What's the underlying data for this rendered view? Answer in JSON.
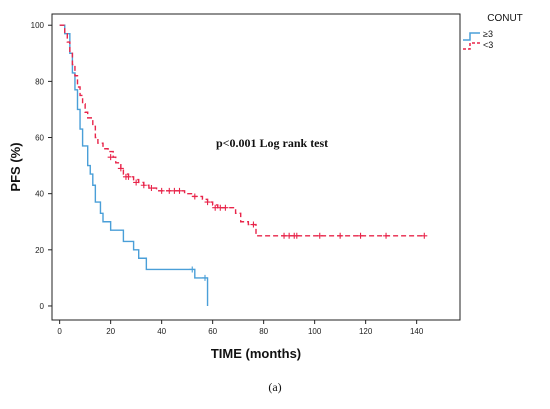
{
  "chart_data": {
    "type": "line",
    "title": "",
    "xlabel": "TIME (months)",
    "ylabel": "PFS (%)",
    "xlim": [
      -3,
      157
    ],
    "ylim": [
      -5,
      104
    ],
    "x_ticks": [
      0,
      20,
      40,
      60,
      80,
      100,
      120,
      140
    ],
    "y_ticks": [
      0,
      20,
      40,
      60,
      80,
      100
    ],
    "grid": false,
    "legend": {
      "title": "CONUT",
      "placement": "top-right",
      "entries": [
        "≥3",
        "<3"
      ]
    },
    "annotation": "p<0.001 Log rank test",
    "caption": "(a)",
    "series": [
      {
        "name": "≥3",
        "color": "#4a9fd8",
        "dash": "solid",
        "steps": [
          [
            0,
            100
          ],
          [
            2,
            97
          ],
          [
            4,
            90
          ],
          [
            5,
            83
          ],
          [
            6,
            77
          ],
          [
            7,
            70
          ],
          [
            8,
            63
          ],
          [
            9,
            57
          ],
          [
            11,
            50
          ],
          [
            12,
            47
          ],
          [
            13,
            43
          ],
          [
            14,
            37
          ],
          [
            16,
            33
          ],
          [
            17,
            30
          ],
          [
            20,
            27
          ],
          [
            25,
            23
          ],
          [
            29,
            20
          ],
          [
            31,
            17
          ],
          [
            34,
            13
          ],
          [
            52,
            13
          ],
          [
            53,
            10
          ],
          [
            57,
            10
          ],
          [
            58,
            0
          ]
        ],
        "censored": [
          [
            52,
            13
          ],
          [
            57,
            10
          ]
        ]
      },
      {
        "name": "<3",
        "color": "#e8254a",
        "dash": "dashed",
        "steps": [
          [
            0,
            100
          ],
          [
            2,
            97
          ],
          [
            3,
            94
          ],
          [
            4,
            90
          ],
          [
            5,
            86
          ],
          [
            6,
            82
          ],
          [
            7,
            78
          ],
          [
            8,
            75
          ],
          [
            9,
            72
          ],
          [
            10,
            69
          ],
          [
            11,
            67
          ],
          [
            13,
            64
          ],
          [
            14,
            60
          ],
          [
            15,
            58
          ],
          [
            17,
            56
          ],
          [
            19,
            55
          ],
          [
            21,
            53
          ],
          [
            22,
            51
          ],
          [
            24,
            49
          ],
          [
            25,
            47
          ],
          [
            27,
            46
          ],
          [
            29,
            45
          ],
          [
            31,
            44
          ],
          [
            33,
            43
          ],
          [
            35,
            42
          ],
          [
            38,
            41
          ],
          [
            46,
            41
          ],
          [
            49,
            40
          ],
          [
            52,
            39
          ],
          [
            56,
            38
          ],
          [
            58,
            37
          ],
          [
            60,
            36
          ],
          [
            62,
            35
          ],
          [
            67,
            35
          ],
          [
            69,
            33
          ],
          [
            71,
            30
          ],
          [
            74,
            29
          ],
          [
            77,
            25
          ],
          [
            143,
            25
          ]
        ],
        "censored": [
          [
            20,
            53
          ],
          [
            24,
            49
          ],
          [
            26,
            46
          ],
          [
            27,
            46
          ],
          [
            30,
            44
          ],
          [
            33,
            43
          ],
          [
            36,
            42
          ],
          [
            40,
            41
          ],
          [
            43,
            41
          ],
          [
            45,
            41
          ],
          [
            47,
            41
          ],
          [
            53,
            39
          ],
          [
            58,
            37
          ],
          [
            61,
            35
          ],
          [
            63,
            35
          ],
          [
            65,
            35
          ],
          [
            76,
            29
          ],
          [
            88,
            25
          ],
          [
            90,
            25
          ],
          [
            92,
            25
          ],
          [
            93,
            25
          ],
          [
            102,
            25
          ],
          [
            110,
            25
          ],
          [
            118,
            25
          ],
          [
            128,
            25
          ],
          [
            143,
            25
          ]
        ]
      }
    ]
  }
}
